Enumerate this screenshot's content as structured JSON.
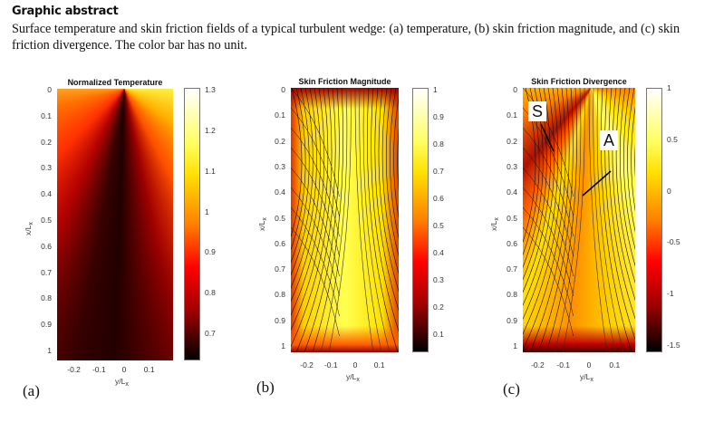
{
  "heading": "Graphic abstract",
  "caption": "Surface temperature and skin friction fields of a typical turbulent wedge: (a) temperature, (b) skin friction magnitude, and (c) skin friction divergence. The color bar has no unit.",
  "panels": [
    {
      "id": "a",
      "label": "(a)",
      "title": "Normalized Temperature",
      "ylabel": "x/L",
      "ylabel_sub": "x",
      "xlabel": "y/L",
      "xlabel_sub": "x",
      "yticks": [
        "0",
        "0.1",
        "0.2",
        "0.3",
        "0.4",
        "0.5",
        "0.6",
        "0.7",
        "0.8",
        "0.9",
        "1"
      ],
      "xticks": [
        "-0.2",
        "-0.1",
        "0",
        "0.1"
      ],
      "colorbar": {
        "ticks": [
          "1.3",
          "1.2",
          "1.1",
          "1",
          "0.9",
          "0.8",
          "0.7"
        ],
        "range": [
          0.63,
          1.3
        ]
      }
    },
    {
      "id": "b",
      "label": "(b)",
      "title": "Skin Friction Magnitude",
      "ylabel": "x/L",
      "ylabel_sub": "x",
      "xlabel": "y/L",
      "xlabel_sub": "x",
      "yticks": [
        "0",
        "0.1",
        "0.2",
        "0.3",
        "0.4",
        "0.5",
        "0.6",
        "0.7",
        "0.8",
        "0.9",
        "1"
      ],
      "xticks": [
        "-0.2",
        "-0.1",
        "0",
        "0.1"
      ],
      "colorbar": {
        "ticks": [
          "1",
          "0.9",
          "0.8",
          "0.7",
          "0.6",
          "0.5",
          "0.4",
          "0.3",
          "0.2",
          "0.1"
        ],
        "range": [
          0.03,
          1.0
        ]
      }
    },
    {
      "id": "c",
      "label": "(c)",
      "title": "Skin Friction Divergence",
      "ylabel": "x/L",
      "ylabel_sub": "x",
      "xlabel": "y/L",
      "xlabel_sub": "x",
      "yticks": [
        "0",
        "0.1",
        "0.2",
        "0.3",
        "0.4",
        "0.5",
        "0.6",
        "0.7",
        "0.8",
        "0.9",
        "1"
      ],
      "xticks": [
        "-0.2",
        "-0.1",
        "0",
        "0.1"
      ],
      "colorbar": {
        "ticks": [
          "1",
          "0.5",
          "0",
          "-0.5",
          "-1",
          "-1.5"
        ],
        "range": [
          -1.6,
          1.0
        ]
      },
      "annotations": [
        "S",
        "A"
      ]
    }
  ]
}
